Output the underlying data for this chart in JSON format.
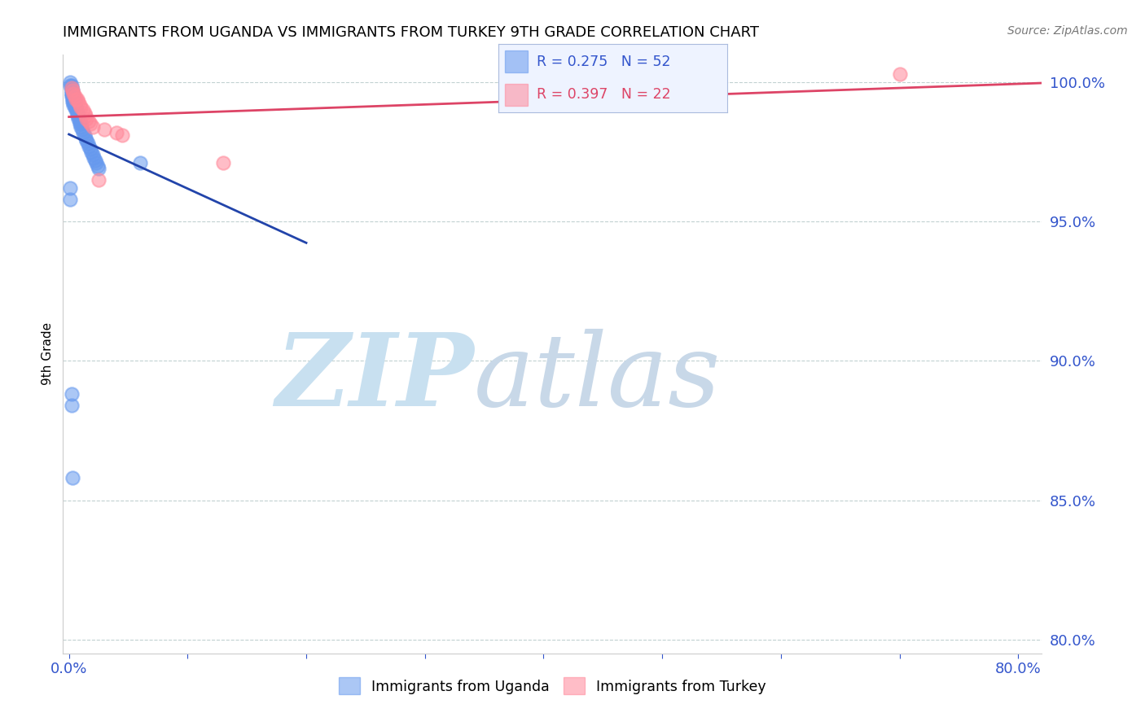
{
  "title": "IMMIGRANTS FROM UGANDA VS IMMIGRANTS FROM TURKEY 9TH GRADE CORRELATION CHART",
  "source": "Source: ZipAtlas.com",
  "ylabel": "9th Grade",
  "xlim": [
    -0.005,
    0.82
  ],
  "ylim": [
    0.795,
    1.01
  ],
  "uganda_color": "#6699ee",
  "turkey_color": "#ff8899",
  "uganda_line_color": "#2244aa",
  "turkey_line_color": "#dd4466",
  "uganda_R": 0.275,
  "uganda_N": 52,
  "turkey_R": 0.397,
  "turkey_N": 22,
  "yticks": [
    0.8,
    0.85,
    0.9,
    0.95,
    1.0
  ],
  "ytick_labels": [
    "80.0%",
    "85.0%",
    "90.0%",
    "95.0%",
    "100.0%"
  ],
  "watermark_color": "#d8ebf8",
  "axis_color": "#3355cc",
  "grid_color": "#bbcccc",
  "uganda_x": [
    0.001,
    0.001,
    0.002,
    0.002,
    0.002,
    0.002,
    0.002,
    0.002,
    0.002,
    0.003,
    0.003,
    0.003,
    0.003,
    0.003,
    0.004,
    0.004,
    0.004,
    0.004,
    0.005,
    0.005,
    0.005,
    0.006,
    0.006,
    0.007,
    0.007,
    0.008,
    0.008,
    0.009,
    0.009,
    0.01,
    0.01,
    0.011,
    0.012,
    0.013,
    0.014,
    0.015,
    0.016,
    0.017,
    0.018,
    0.019,
    0.02,
    0.021,
    0.022,
    0.023,
    0.024,
    0.025,
    0.06,
    0.001,
    0.001,
    0.002,
    0.002,
    0.003
  ],
  "uganda_y": [
    1.0,
    0.999,
    0.999,
    0.998,
    0.997,
    0.997,
    0.996,
    0.996,
    0.995,
    0.997,
    0.996,
    0.995,
    0.994,
    0.993,
    0.995,
    0.994,
    0.993,
    0.992,
    0.993,
    0.992,
    0.991,
    0.991,
    0.99,
    0.989,
    0.988,
    0.988,
    0.987,
    0.986,
    0.985,
    0.985,
    0.984,
    0.983,
    0.982,
    0.981,
    0.98,
    0.979,
    0.978,
    0.977,
    0.976,
    0.975,
    0.974,
    0.973,
    0.972,
    0.971,
    0.97,
    0.969,
    0.971,
    0.962,
    0.958,
    0.888,
    0.884,
    0.858
  ],
  "turkey_x": [
    0.002,
    0.003,
    0.004,
    0.005,
    0.006,
    0.007,
    0.008,
    0.009,
    0.01,
    0.012,
    0.013,
    0.014,
    0.015,
    0.017,
    0.018,
    0.02,
    0.025,
    0.03,
    0.04,
    0.045,
    0.13,
    0.7
  ],
  "turkey_y": [
    0.998,
    0.997,
    0.996,
    0.995,
    0.994,
    0.994,
    0.993,
    0.992,
    0.991,
    0.99,
    0.989,
    0.988,
    0.987,
    0.986,
    0.985,
    0.984,
    0.965,
    0.983,
    0.982,
    0.981,
    0.971,
    1.003
  ],
  "ug_line_x0": 0.0,
  "ug_line_x1": 0.2,
  "tk_line_x0": 0.0,
  "tk_line_x1": 0.82
}
